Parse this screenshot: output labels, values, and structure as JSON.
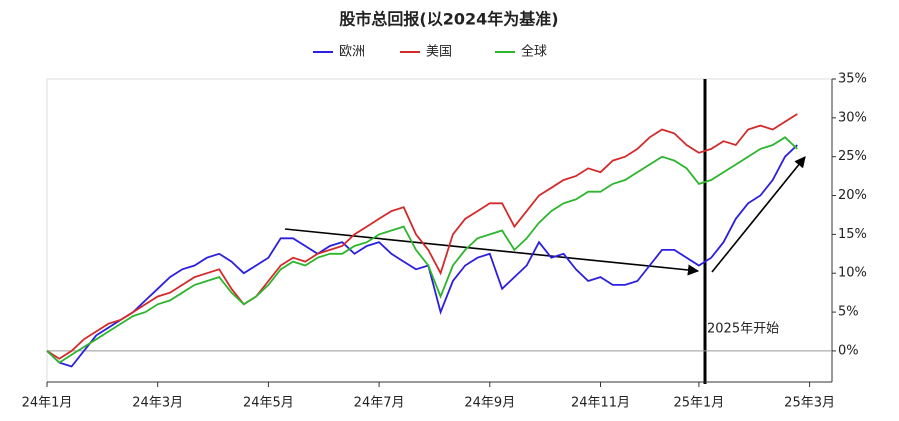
{
  "chart_data": {
    "type": "line",
    "title": "股市总回报(以2024年为基准)",
    "annotation": "2025年开始",
    "categories": [
      "24年1月",
      null,
      null,
      null,
      null,
      null,
      null,
      null,
      null,
      "24年3月",
      null,
      null,
      null,
      null,
      null,
      null,
      null,
      null,
      "24年5月",
      null,
      null,
      null,
      null,
      null,
      null,
      null,
      null,
      "24年7月",
      null,
      null,
      null,
      null,
      null,
      null,
      null,
      null,
      "24年9月",
      null,
      null,
      null,
      null,
      null,
      null,
      null,
      null,
      "24年11月",
      null,
      null,
      null,
      null,
      null,
      null,
      null,
      "25年1月",
      null,
      null,
      null,
      null,
      null,
      null,
      null,
      null,
      "25年3月"
    ],
    "series": [
      {
        "name": "欧洲",
        "color": "#2b1fe0",
        "values": [
          0,
          -1.5,
          -2,
          0,
          2,
          3,
          4,
          5,
          6.5,
          8,
          9.5,
          10.5,
          11,
          12,
          12.5,
          11.5,
          10,
          11,
          12,
          14.5,
          14.5,
          13.5,
          12.5,
          13.5,
          14,
          12.5,
          13.5,
          14,
          12.5,
          11.5,
          10.5,
          11,
          5,
          9,
          11,
          12,
          12.5,
          8,
          9.5,
          11,
          14,
          12,
          12.5,
          10.5,
          9,
          9.5,
          8.5,
          8.5,
          9,
          11,
          13,
          13,
          12,
          11,
          12,
          14,
          17,
          19,
          20,
          22,
          25,
          26.5,
          null
        ]
      },
      {
        "name": "美国",
        "color": "#d42a2a",
        "values": [
          0,
          -1,
          0,
          1.5,
          2.5,
          3.5,
          4,
          5,
          6,
          7,
          7.5,
          8.5,
          9.5,
          10,
          10.5,
          8,
          6,
          7,
          9,
          11,
          12,
          11.5,
          12.5,
          13,
          13.5,
          15,
          16,
          17,
          18,
          18.5,
          15,
          13,
          10,
          15,
          17,
          18,
          19,
          19,
          16,
          18,
          20,
          21,
          22,
          22.5,
          23.5,
          23,
          24.5,
          25,
          26,
          27.5,
          28.5,
          28,
          26.5,
          25.5,
          26,
          27,
          26.5,
          28.5,
          29,
          28.5,
          29.5,
          30.5,
          null
        ]
      },
      {
        "name": "全球",
        "color": "#2db52d",
        "values": [
          0,
          -1.5,
          -0.5,
          0.5,
          1.5,
          2.5,
          3.5,
          4.5,
          5,
          6,
          6.5,
          7.5,
          8.5,
          9,
          9.5,
          7.5,
          6,
          7,
          8.5,
          10.5,
          11.5,
          11,
          12,
          12.5,
          12.5,
          13.5,
          14,
          15,
          15.5,
          16,
          13,
          11,
          7,
          11,
          13,
          14.5,
          15,
          15.5,
          13,
          14.5,
          16.5,
          18,
          19,
          19.5,
          20.5,
          20.5,
          21.5,
          22,
          23,
          24,
          25,
          24.5,
          23.5,
          21.5,
          22,
          23,
          24,
          25,
          26,
          26.5,
          27.5,
          26,
          null
        ]
      }
    ],
    "ylim": [
      -4,
      35
    ],
    "yticks": [
      {
        "value": 0,
        "label": "0%"
      },
      {
        "value": 5,
        "label": "5%"
      },
      {
        "value": 10,
        "label": "10%"
      },
      {
        "value": 15,
        "label": "15%"
      },
      {
        "value": 20,
        "label": "20%"
      },
      {
        "value": 25,
        "label": "25%"
      },
      {
        "value": 30,
        "label": "30%"
      },
      {
        "value": 35,
        "label": "35%"
      }
    ],
    "legend": "top"
  }
}
